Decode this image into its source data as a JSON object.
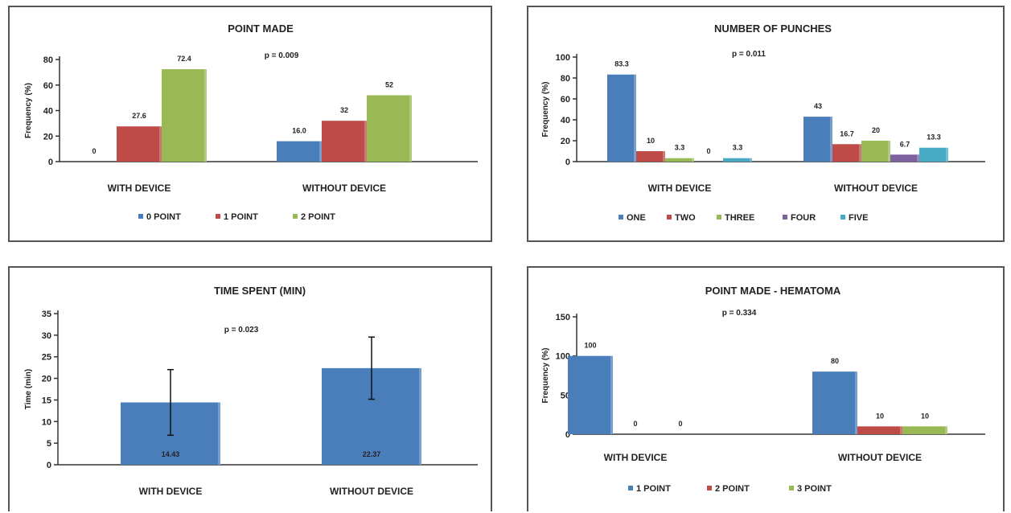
{
  "chart_data": [
    {
      "type": "bar",
      "title": "POINT MADE",
      "ylabel": "Frequency (%)",
      "annotation": "p = 0.009",
      "categories": [
        "WITH DEVICE",
        "WITHOUT DEVICE"
      ],
      "ylim": [
        0,
        80
      ],
      "yticks": [
        0,
        20,
        40,
        60,
        80
      ],
      "series": [
        {
          "name": "0 POINT",
          "color": "#4a7ebb",
          "values": [
            0,
            16.0
          ],
          "labels": [
            "0",
            "16.0"
          ]
        },
        {
          "name": "1 POINT",
          "color": "#be4b48",
          "values": [
            27.6,
            32
          ],
          "labels": [
            "27.6",
            "32"
          ]
        },
        {
          "name": "2 POINT",
          "color": "#98b954",
          "values": [
            72.4,
            52
          ],
          "labels": [
            "72.4",
            "52"
          ]
        }
      ]
    },
    {
      "type": "bar",
      "title": "NUMBER OF PUNCHES",
      "ylabel": "Frequency (%)",
      "annotation": "p = 0.011",
      "categories": [
        "WITH DEVICE",
        "WITHOUT DEVICE"
      ],
      "ylim": [
        0,
        100
      ],
      "yticks": [
        0,
        20,
        40,
        60,
        80,
        100
      ],
      "series": [
        {
          "name": "ONE",
          "color": "#4a7ebb",
          "values": [
            83.3,
            43
          ],
          "labels": [
            "83.3",
            "43"
          ]
        },
        {
          "name": "TWO",
          "color": "#be4b48",
          "values": [
            10,
            16.7
          ],
          "labels": [
            "10",
            "16.7"
          ]
        },
        {
          "name": "THREE",
          "color": "#98b954",
          "values": [
            3.3,
            20
          ],
          "labels": [
            "3.3",
            "20"
          ]
        },
        {
          "name": "FOUR",
          "color": "#7d60a0",
          "values": [
            0,
            6.7
          ],
          "labels": [
            "0",
            "6.7"
          ]
        },
        {
          "name": "FIVE",
          "color": "#46aac5",
          "values": [
            3.3,
            13.3
          ],
          "labels": [
            "3.3",
            "13.3"
          ]
        }
      ]
    },
    {
      "type": "bar",
      "title": "TIME SPENT (MIN)",
      "ylabel": "Time (min)",
      "annotation": "p = 0.023",
      "categories": [
        "WITH DEVICE",
        "WITHOUT DEVICE"
      ],
      "ylim": [
        0,
        35
      ],
      "yticks": [
        0,
        5,
        10,
        15,
        20,
        25,
        30,
        35
      ],
      "series": [
        {
          "name": "",
          "color": "#4a7ebb",
          "values": [
            14.43,
            22.37
          ],
          "labels": [
            "14.43",
            "22.37"
          ],
          "errors": [
            7.6,
            7.2
          ]
        }
      ]
    },
    {
      "type": "bar",
      "title": "POINT MADE - HEMATOMA",
      "ylabel": "Frequency (%)",
      "annotation": "p = 0.334",
      "categories": [
        "WITH DEVICE",
        "WITHOUT DEVICE"
      ],
      "ylim": [
        0,
        150
      ],
      "yticks": [
        0,
        50,
        100,
        150
      ],
      "series": [
        {
          "name": "1 POINT",
          "color": "#4a7ebb",
          "values": [
            100,
            80
          ],
          "labels": [
            "100",
            "80"
          ]
        },
        {
          "name": "2 POINT",
          "color": "#be4b48",
          "values": [
            0,
            10
          ],
          "labels": [
            "0",
            "10"
          ]
        },
        {
          "name": "3 POINT",
          "color": "#98b954",
          "values": [
            0,
            10
          ],
          "labels": [
            "0",
            "10"
          ]
        }
      ]
    }
  ]
}
